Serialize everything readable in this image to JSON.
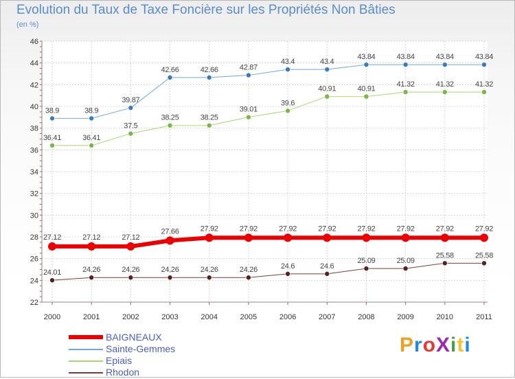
{
  "title": "Evolution du Taux de Taxe Foncière sur les Propriétés Non Bâties",
  "subtitle": "(en %)",
  "logo": {
    "text": "ProXiti",
    "colors": [
      "#f0a020",
      "#1e88e5",
      "#e53935",
      "#9c27b0",
      "#43a047",
      "#fbc02d",
      "#1e88e5"
    ]
  },
  "chart_data": {
    "type": "line",
    "title": "Evolution du Taux de Taxe Foncière sur les Propriétés Non Bâties",
    "ylabel": "(en %)",
    "xlabel": "",
    "x": [
      "2000",
      "2001",
      "2002",
      "2003",
      "2004",
      "2005",
      "2006",
      "2007",
      "2008",
      "2009",
      "2010",
      "2011"
    ],
    "ylim": [
      22,
      46
    ],
    "yticks": [
      "22",
      "24",
      "26",
      "28",
      "30",
      "32",
      "34",
      "36",
      "38",
      "40",
      "42",
      "44",
      "46"
    ],
    "grid": true,
    "legend_position": "bottom-left",
    "series": [
      {
        "name": "BAIGNEAUX",
        "color": "#ee0000",
        "point_color": "#ee0000",
        "values": [
          27.12,
          27.12,
          27.12,
          27.66,
          27.92,
          27.92,
          27.92,
          27.92,
          27.92,
          27.92,
          27.92,
          27.92
        ],
        "labels": [
          "27.12",
          "27.12",
          "27.12",
          "27.66",
          "27.92",
          "27.92",
          "27.92",
          "27.92",
          "27.92",
          "27.92",
          "27.92",
          "27.92"
        ]
      },
      {
        "name": "Sainte-Gemmes",
        "color": "#6fa8dc",
        "point_color": "#3a7bbf",
        "values": [
          38.9,
          38.9,
          39.87,
          42.66,
          42.66,
          42.87,
          43.4,
          43.4,
          43.84,
          43.84,
          43.84,
          43.84
        ],
        "labels": [
          "38.9",
          "38.9",
          "39.87",
          "42.66",
          "42.66",
          "42.87",
          "43.4",
          "43.4",
          "43.84",
          "43.84",
          "43.84",
          "43.84"
        ]
      },
      {
        "name": "Epiais",
        "color": "#a6d86e",
        "point_color": "#7ab648",
        "values": [
          36.41,
          36.41,
          37.5,
          38.25,
          38.25,
          39.01,
          39.6,
          40.91,
          40.91,
          41.32,
          41.32,
          41.32
        ],
        "labels": [
          "36.41",
          "36.41",
          "37.5",
          "38.25",
          "38.25",
          "39.01",
          "39.6",
          "40.91",
          "40.91",
          "41.32",
          "41.32",
          "41.32"
        ]
      },
      {
        "name": "Rhodon",
        "color": "#7a3b3b",
        "point_color": "#5a2020",
        "values": [
          24.01,
          24.26,
          24.26,
          24.26,
          24.26,
          24.26,
          24.6,
          24.6,
          25.09,
          25.09,
          25.58,
          25.58
        ],
        "labels": [
          "24.01",
          "24.26",
          "24.26",
          "24.26",
          "24.26",
          "24.26",
          "24.6",
          "24.6",
          "25.09",
          "25.09",
          "25.58",
          "25.58"
        ]
      }
    ]
  }
}
